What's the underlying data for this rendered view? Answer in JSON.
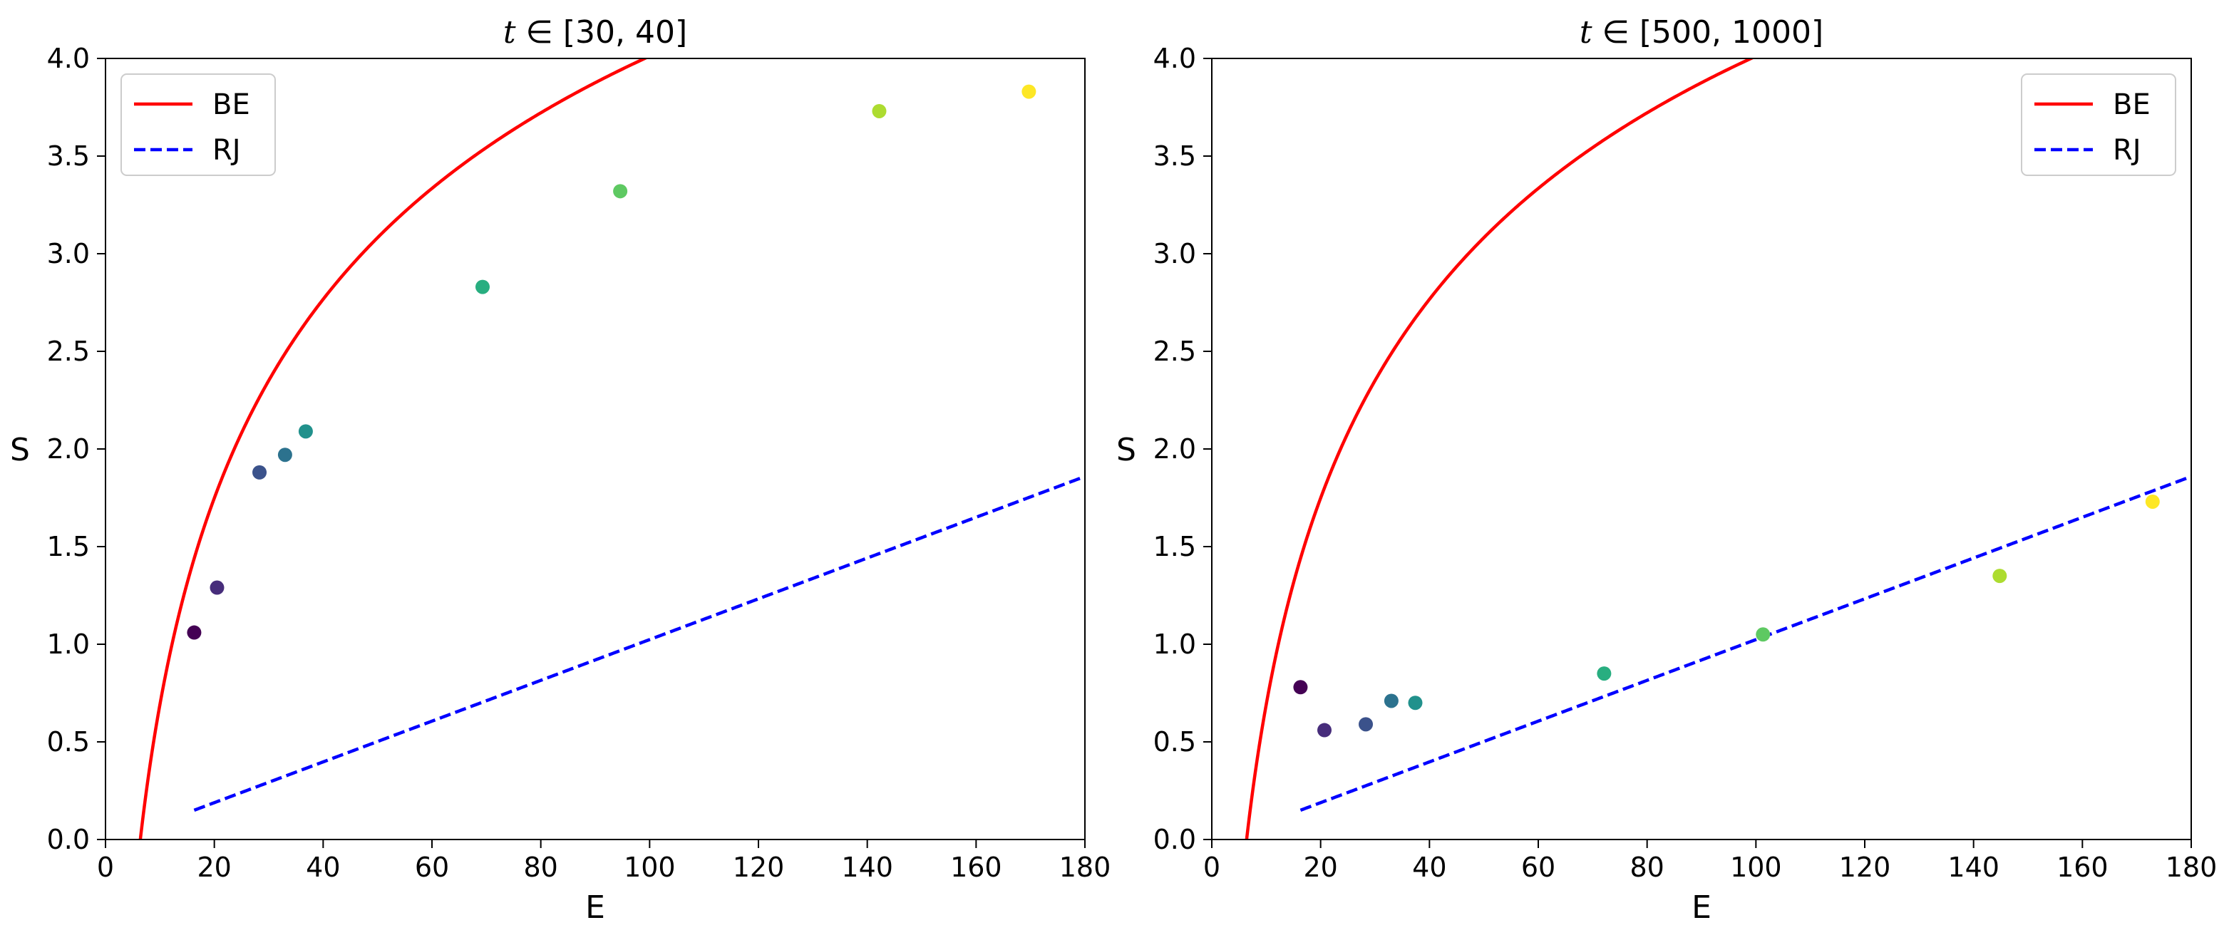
{
  "chart_data": [
    {
      "type": "scatter",
      "title": "t ∈ [30, 40]",
      "title_parts": {
        "var": "t",
        "rest": " ∈ [30, 40]"
      },
      "xlabel": "E",
      "ylabel": "S",
      "xlim": [
        0,
        180
      ],
      "ylim": [
        0,
        4.0
      ],
      "xticks": [
        0,
        20,
        40,
        60,
        80,
        100,
        120,
        140,
        160,
        180
      ],
      "yticks": [
        0.0,
        0.5,
        1.0,
        1.5,
        2.0,
        2.5,
        3.0,
        3.5,
        4.0
      ],
      "grid": false,
      "legend_position": "top-left",
      "lines": [
        {
          "name": "BE",
          "style": "solid",
          "color": "#ff0000",
          "model": "BE",
          "x_start": 6.4,
          "x_end": 180
        },
        {
          "name": "RJ",
          "style": "dashed",
          "color": "#0000ff",
          "model": "RJ",
          "x_start": 16.3,
          "x_end": 180
        }
      ],
      "points": [
        {
          "x": 16.3,
          "y": 1.06,
          "color": "#440154"
        },
        {
          "x": 20.5,
          "y": 1.29,
          "color": "#472d7b"
        },
        {
          "x": 28.3,
          "y": 1.88,
          "color": "#3b528b"
        },
        {
          "x": 33.0,
          "y": 1.97,
          "color": "#2c728e"
        },
        {
          "x": 36.8,
          "y": 2.09,
          "color": "#21918c"
        },
        {
          "x": 69.3,
          "y": 2.83,
          "color": "#28ae80"
        },
        {
          "x": 94.6,
          "y": 3.32,
          "color": "#5ec962"
        },
        {
          "x": 142.2,
          "y": 3.73,
          "color": "#addc30"
        },
        {
          "x": 169.7,
          "y": 3.83,
          "color": "#fde725"
        }
      ]
    },
    {
      "type": "scatter",
      "title": "t ∈ [500, 1000]",
      "title_parts": {
        "var": "t",
        "rest": " ∈ [500, 1000]"
      },
      "xlabel": "E",
      "ylabel": "S",
      "xlim": [
        0,
        180
      ],
      "ylim": [
        0,
        4.0
      ],
      "xticks": [
        0,
        20,
        40,
        60,
        80,
        100,
        120,
        140,
        160,
        180
      ],
      "yticks": [
        0.0,
        0.5,
        1.0,
        1.5,
        2.0,
        2.5,
        3.0,
        3.5,
        4.0
      ],
      "grid": false,
      "legend_position": "top-right",
      "lines": [
        {
          "name": "BE",
          "style": "solid",
          "color": "#ff0000",
          "model": "BE",
          "x_start": 6.4,
          "x_end": 180
        },
        {
          "name": "RJ",
          "style": "dashed",
          "color": "#0000ff",
          "model": "RJ",
          "x_start": 16.3,
          "x_end": 180
        }
      ],
      "points": [
        {
          "x": 16.3,
          "y": 0.78,
          "color": "#440154"
        },
        {
          "x": 20.7,
          "y": 0.56,
          "color": "#472d7b"
        },
        {
          "x": 28.3,
          "y": 0.59,
          "color": "#3b528b"
        },
        {
          "x": 33.0,
          "y": 0.71,
          "color": "#2c728e"
        },
        {
          "x": 37.4,
          "y": 0.7,
          "color": "#21918c"
        },
        {
          "x": 72.1,
          "y": 0.85,
          "color": "#28ae80"
        },
        {
          "x": 101.3,
          "y": 1.05,
          "color": "#5ec962"
        },
        {
          "x": 144.8,
          "y": 1.35,
          "color": "#addc30"
        },
        {
          "x": 172.9,
          "y": 1.73,
          "color": "#fde725"
        }
      ]
    }
  ]
}
